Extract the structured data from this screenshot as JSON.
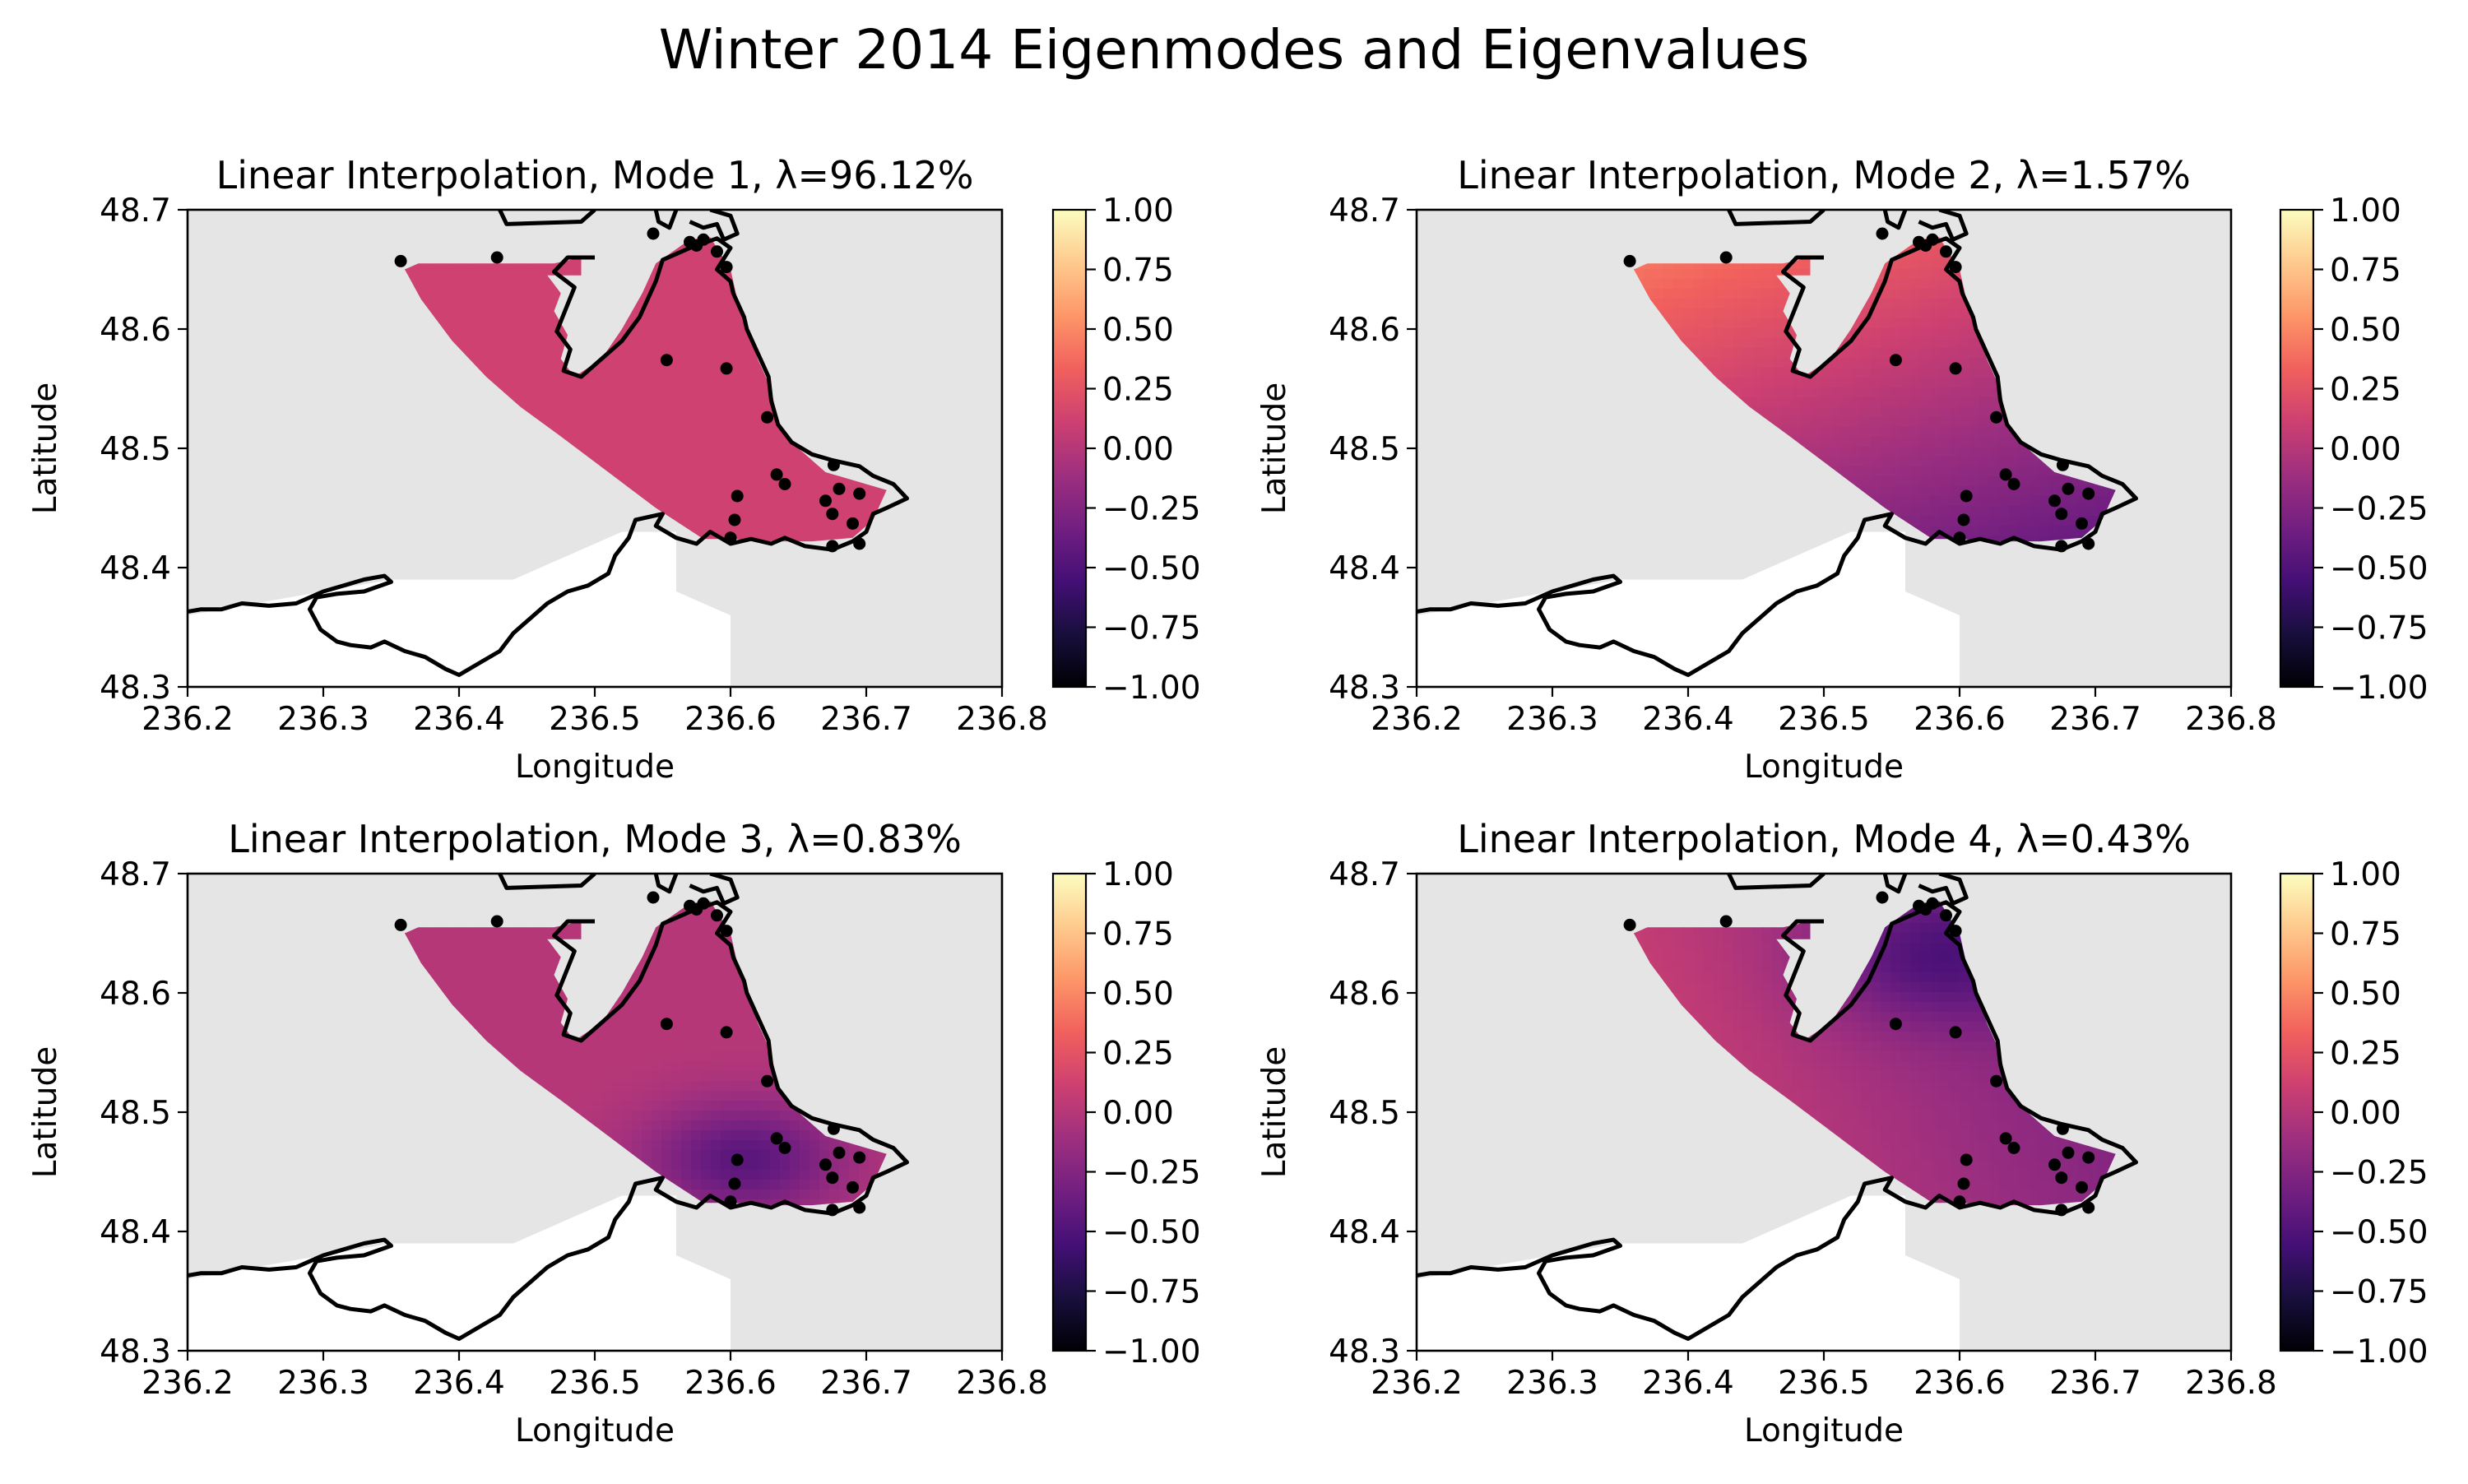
{
  "figure": {
    "title": "Winter 2014 Eigenmodes and Eigenvalues"
  },
  "colors": {
    "land": "#e5e5e5",
    "water_mask": "#ffffff",
    "coast": "#000000",
    "stations": "#000000",
    "colormap": "magma",
    "colormap_stops": [
      "#000004",
      "#180f3d",
      "#440f76",
      "#721f81",
      "#9e2f7f",
      "#cd4071",
      "#f1605d",
      "#fd9668",
      "#feca8d",
      "#fcfdbf"
    ]
  },
  "shared_axes": {
    "xlabel": "Longitude",
    "ylabel": "Latitude",
    "xlim": [
      236.2,
      236.8
    ],
    "ylim": [
      48.3,
      48.7
    ],
    "xticks": [
      "236.2",
      "236.3",
      "236.4",
      "236.5",
      "236.6",
      "236.7",
      "236.8"
    ],
    "yticks": [
      "48.3",
      "48.4",
      "48.5",
      "48.6",
      "48.7"
    ],
    "colorbar_range": [
      -1.0,
      1.0
    ],
    "colorbar_ticks": [
      "1.00",
      "0.75",
      "0.50",
      "0.25",
      "0.00",
      "−0.25",
      "−0.50",
      "−0.75",
      "−1.00"
    ]
  },
  "chart_data": [
    {
      "type": "heatmap",
      "title": "Linear Interpolation, Mode 1, λ=96.12%",
      "mode": 1,
      "eigenvalue_percent": 96.12,
      "field": {
        "base": 0.12,
        "gradient": [
          0.0,
          0.0
        ],
        "hotspot": null
      }
    },
    {
      "type": "heatmap",
      "title": "Linear Interpolation, Mode 2, λ=1.57%",
      "mode": 2,
      "eigenvalue_percent": 1.57,
      "field": {
        "base": 0.02,
        "gradient": [
          -0.9,
          0.55
        ],
        "hotspot": null
      }
    },
    {
      "type": "heatmap",
      "title": "Linear Interpolation, Mode 3, λ=0.83%",
      "mode": 3,
      "eigenvalue_percent": 0.83,
      "field": {
        "base": 0.0,
        "gradient": [
          0.0,
          0.0
        ],
        "hotspot": {
          "lon": 236.61,
          "lat": 48.46,
          "value": -0.45,
          "spread": 0.05
        }
      }
    },
    {
      "type": "heatmap",
      "title": "Linear Interpolation, Mode 4, λ=0.43%",
      "mode": 4,
      "eigenvalue_percent": 0.43,
      "field": {
        "base": -0.1,
        "gradient": [
          -1.1,
          -0.1
        ],
        "hotspot": {
          "lon": 236.58,
          "lat": 48.63,
          "value": -0.35,
          "spread": 0.06
        }
      }
    }
  ],
  "stations": [
    [
      236.357,
      48.657
    ],
    [
      236.428,
      48.66
    ],
    [
      236.543,
      48.68
    ],
    [
      236.57,
      48.673
    ],
    [
      236.575,
      48.67
    ],
    [
      236.58,
      48.675
    ],
    [
      236.59,
      48.665
    ],
    [
      236.597,
      48.652
    ],
    [
      236.553,
      48.574
    ],
    [
      236.597,
      48.567
    ],
    [
      236.627,
      48.526
    ],
    [
      236.634,
      48.478
    ],
    [
      236.64,
      48.47
    ],
    [
      236.676,
      48.486
    ],
    [
      236.68,
      48.466
    ],
    [
      236.695,
      48.462
    ],
    [
      236.67,
      48.456
    ],
    [
      236.605,
      48.46
    ],
    [
      236.69,
      48.437
    ],
    [
      236.603,
      48.44
    ],
    [
      236.6,
      48.425
    ],
    [
      236.675,
      48.445
    ],
    [
      236.675,
      48.418
    ],
    [
      236.695,
      48.42
    ]
  ],
  "water_polygon": [
    [
      236.37,
      48.655
    ],
    [
      236.47,
      48.655
    ],
    [
      236.49,
      48.66
    ],
    [
      236.49,
      48.645
    ],
    [
      236.465,
      48.645
    ],
    [
      236.475,
      48.63
    ],
    [
      236.47,
      48.615
    ],
    [
      236.48,
      48.595
    ],
    [
      236.475,
      48.575
    ],
    [
      236.485,
      48.56
    ],
    [
      236.505,
      48.575
    ],
    [
      236.52,
      48.6
    ],
    [
      236.535,
      48.63
    ],
    [
      236.545,
      48.655
    ],
    [
      236.57,
      48.675
    ],
    [
      236.585,
      48.677
    ],
    [
      236.6,
      48.65
    ],
    [
      236.605,
      48.625
    ],
    [
      236.613,
      48.6
    ],
    [
      236.62,
      48.575
    ],
    [
      236.63,
      48.55
    ],
    [
      236.635,
      48.52
    ],
    [
      236.65,
      48.5
    ],
    [
      236.67,
      48.48
    ],
    [
      236.7,
      48.47
    ],
    [
      236.715,
      48.465
    ],
    [
      236.705,
      48.44
    ],
    [
      236.69,
      48.425
    ],
    [
      236.66,
      48.422
    ],
    [
      236.63,
      48.422
    ],
    [
      236.6,
      48.424
    ],
    [
      236.58,
      48.424
    ],
    [
      236.545,
      48.45
    ],
    [
      236.51,
      48.48
    ],
    [
      236.475,
      48.51
    ],
    [
      236.445,
      48.535
    ],
    [
      236.42,
      48.56
    ],
    [
      236.395,
      48.59
    ],
    [
      236.372,
      48.625
    ],
    [
      236.36,
      48.65
    ]
  ],
  "coastlines": [
    [
      [
        236.43,
        48.7
      ],
      [
        236.435,
        48.688
      ],
      [
        236.49,
        48.69
      ],
      [
        236.5,
        48.7
      ]
    ],
    [
      [
        236.5,
        48.66
      ],
      [
        236.48,
        48.66
      ],
      [
        236.47,
        48.648
      ],
      [
        236.485,
        48.635
      ],
      [
        236.478,
        48.615
      ],
      [
        236.472,
        48.598
      ],
      [
        236.482,
        48.583
      ],
      [
        236.477,
        48.565
      ],
      [
        236.49,
        48.56
      ],
      [
        236.5,
        48.57
      ],
      [
        236.52,
        48.59
      ],
      [
        236.533,
        48.61
      ],
      [
        236.545,
        48.64
      ],
      [
        236.55,
        48.658
      ],
      [
        236.57,
        48.668
      ],
      [
        236.59,
        48.676
      ],
      [
        236.6,
        48.668
      ],
      [
        236.59,
        48.65
      ],
      [
        236.6,
        48.64
      ],
      [
        236.602,
        48.63
      ],
      [
        236.61,
        48.61
      ],
      [
        236.612,
        48.6
      ],
      [
        236.62,
        48.58
      ],
      [
        236.628,
        48.56
      ],
      [
        236.63,
        48.54
      ],
      [
        236.635,
        48.52
      ],
      [
        236.645,
        48.505
      ],
      [
        236.66,
        48.495
      ],
      [
        236.675,
        48.49
      ],
      [
        236.695,
        48.485
      ],
      [
        236.705,
        48.477
      ],
      [
        236.72,
        48.47
      ],
      [
        236.73,
        48.458
      ],
      [
        236.715,
        48.45
      ],
      [
        236.705,
        48.445
      ],
      [
        236.7,
        48.43
      ],
      [
        236.69,
        48.422
      ],
      [
        236.675,
        48.415
      ],
      [
        236.655,
        48.418
      ],
      [
        236.64,
        48.425
      ],
      [
        236.63,
        48.42
      ],
      [
        236.615,
        48.424
      ],
      [
        236.6,
        48.42
      ],
      [
        236.585,
        48.43
      ],
      [
        236.575,
        48.42
      ],
      [
        236.56,
        48.425
      ],
      [
        236.545,
        48.435
      ],
      [
        236.55,
        48.445
      ],
      [
        236.53,
        48.44
      ],
      [
        236.525,
        48.425
      ],
      [
        236.515,
        48.41
      ],
      [
        236.51,
        48.395
      ],
      [
        236.495,
        48.385
      ],
      [
        236.48,
        48.38
      ],
      [
        236.465,
        48.37
      ],
      [
        236.455,
        48.36
      ],
      [
        236.44,
        48.345
      ],
      [
        236.43,
        48.33
      ],
      [
        236.415,
        48.32
      ],
      [
        236.4,
        48.31
      ],
      [
        236.39,
        48.315
      ],
      [
        236.375,
        48.325
      ],
      [
        236.36,
        48.33
      ],
      [
        236.345,
        48.338
      ],
      [
        236.335,
        48.333
      ],
      [
        236.32,
        48.335
      ],
      [
        236.31,
        48.338
      ],
      [
        236.298,
        48.348
      ],
      [
        236.29,
        48.365
      ],
      [
        236.295,
        48.375
      ],
      [
        236.31,
        48.378
      ],
      [
        236.33,
        48.38
      ],
      [
        236.35,
        48.388
      ],
      [
        236.345,
        48.393
      ],
      [
        236.33,
        48.39
      ],
      [
        236.315,
        48.385
      ],
      [
        236.3,
        48.38
      ],
      [
        236.28,
        48.37
      ],
      [
        236.26,
        48.368
      ],
      [
        236.24,
        48.37
      ],
      [
        236.225,
        48.365
      ],
      [
        236.21,
        48.365
      ],
      [
        236.2,
        48.363
      ]
    ],
    [
      [
        236.545,
        48.7
      ],
      [
        236.547,
        48.69
      ],
      [
        236.555,
        48.685
      ],
      [
        236.56,
        48.7
      ]
    ],
    [
      [
        236.57,
        48.69
      ],
      [
        236.58,
        48.685
      ],
      [
        236.59,
        48.688
      ],
      [
        236.595,
        48.675
      ],
      [
        236.605,
        48.68
      ],
      [
        236.6,
        48.695
      ],
      [
        236.585,
        48.7
      ]
    ]
  ]
}
